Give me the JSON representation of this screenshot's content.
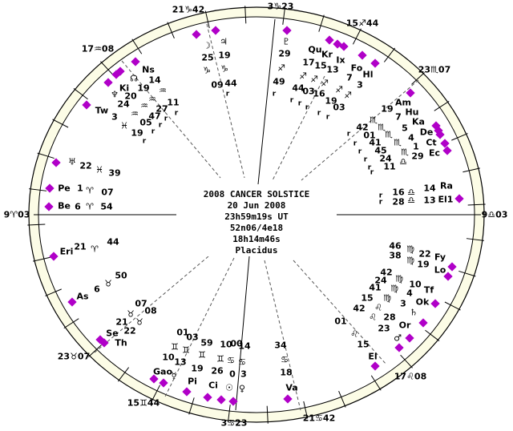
{
  "chart": {
    "title": "2008 CANCER SOLSTICE",
    "date": "20 Jun 2008",
    "time": "23h59m19s UT",
    "location": "52n06/4e18",
    "sidereal_time": "18h14m46s",
    "house_system": "Placidus"
  },
  "colors": {
    "ring": "#fcfce6",
    "marker": "#b000c8",
    "line": "#000000"
  },
  "labels": [
    "21♑42",
    "3♑23",
    "15♐44",
    "23♏07",
    "9♎03",
    "17♌08",
    "21♋42",
    "3♋23",
    "15♊44",
    "23♉07",
    "9♈03",
    "17♒08",
    "☽",
    "25",
    "♑",
    "09",
    "♃",
    "19",
    "♑",
    "44",
    "r",
    "Ns",
    "☊",
    "14",
    "Ki",
    "19",
    "♆",
    "20",
    "♒",
    "24",
    "♒",
    "11",
    "Tw",
    "♒",
    "27",
    "♒",
    "47",
    "05",
    "3",
    "♓",
    "19",
    "r",
    "r",
    "r",
    "r",
    "r",
    "♅",
    "22",
    "♓",
    "39",
    "Pe",
    "1",
    "♈",
    "07",
    "Be",
    "6",
    "♈",
    "54",
    "♇",
    "29",
    "♐",
    "49",
    "r",
    "Qu",
    "Kr",
    "Ix",
    "17",
    "15",
    "13",
    "Fo",
    "Hl",
    "7",
    "3",
    "♐",
    "♐",
    "♐",
    "♐",
    "♐",
    "44",
    "03",
    "16",
    "19",
    "03",
    "r",
    "r",
    "r",
    "r",
    "r",
    "Am",
    "19",
    "Hu",
    "7",
    "Ka",
    "5",
    "De",
    "4",
    "Ct",
    "1",
    "Ec",
    "29",
    "♏",
    "42",
    "♏",
    "01",
    "♏",
    "41",
    "♏",
    "45",
    "♏",
    "24",
    "♎",
    "11",
    "r",
    "r",
    "r",
    "r",
    "r",
    "r",
    "16",
    "♎",
    "14",
    "Ra",
    "28",
    "♎",
    "13",
    "El1",
    "r",
    "r",
    "Eri",
    "21",
    "♈",
    "44",
    "50",
    "♉",
    "6",
    "As",
    "07",
    "08",
    "♉",
    "♉",
    "21",
    "22",
    "Se",
    "Th",
    "01",
    "03",
    "59",
    "10",
    "00",
    "14",
    "♊",
    "♊",
    "♊",
    "♊",
    "♋",
    "♋",
    "10",
    "13",
    "19",
    "26",
    "0",
    "3",
    "Gao",
    "☿",
    "Pi",
    "Ci",
    "☉",
    "♀",
    "46",
    "♍",
    "22",
    "Fy",
    "38",
    "♍",
    "19",
    "Lo",
    "42",
    "24",
    "♍",
    "10",
    "41",
    "♍",
    "4",
    "Tf",
    "15",
    "♍",
    "3",
    "Ok",
    "42",
    "♌",
    "♄",
    "01",
    "♌",
    "28",
    "23",
    "Or",
    "♌",
    "♂",
    "15",
    "El",
    "34",
    "♋",
    "18",
    "Va"
  ]
}
